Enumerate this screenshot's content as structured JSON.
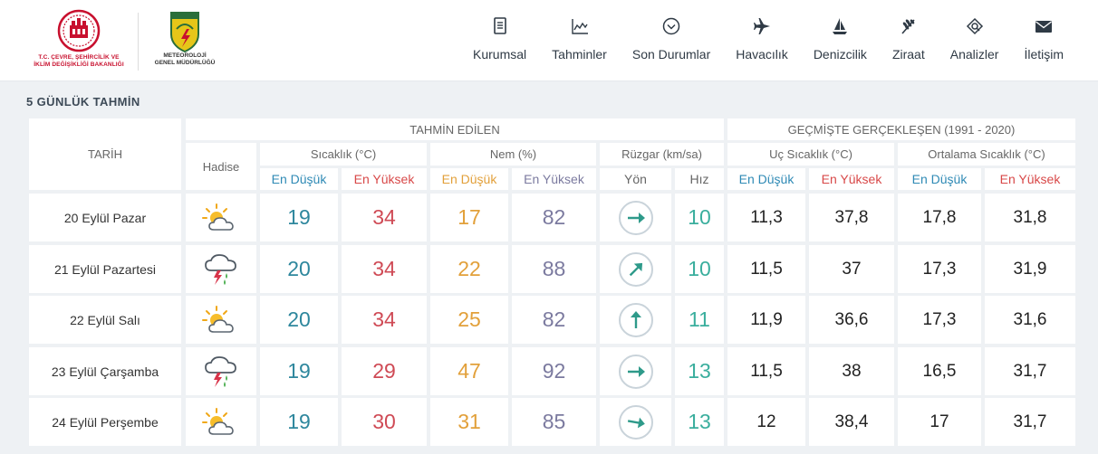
{
  "header": {
    "ministry_line1": "T.C. ÇEVRE, ŞEHİRCİLİK VE",
    "ministry_line2": "İKLİM DEĞİŞİKLİĞİ BAKANLIĞI",
    "mgm_line1": "METEOROLOJİ",
    "mgm_line2": "GENEL MÜDÜRLÜĞÜ",
    "nav": [
      {
        "label": "Kurumsal",
        "icon": "document-icon"
      },
      {
        "label": "Tahminler",
        "icon": "chart-line-icon"
      },
      {
        "label": "Son Durumlar",
        "icon": "chevron-circle-icon"
      },
      {
        "label": "Havacılık",
        "icon": "airplane-icon"
      },
      {
        "label": "Denizcilik",
        "icon": "sailboat-icon"
      },
      {
        "label": "Ziraat",
        "icon": "wheat-icon"
      },
      {
        "label": "Analizler",
        "icon": "analysis-icon"
      },
      {
        "label": "İletişim",
        "icon": "envelope-icon"
      }
    ]
  },
  "forecast": {
    "section_title": "5 GÜNLÜK TAHMİN",
    "col_tarih": "TARİH",
    "col_hadise": "Hadise",
    "group_forecast": "TAHMİN EDİLEN",
    "group_history": "GEÇMİŞTE GERÇEKLEŞEN (1991 - 2020)",
    "sub_sicaklik": "Sıcaklık (°C)",
    "sub_nem": "Nem (%)",
    "sub_ruzgar": "Rüzgar (km/sa)",
    "sub_uc": "Uç Sıcaklık (°C)",
    "sub_ortalama": "Ortalama Sıcaklık (°C)",
    "en_dusuk": "En Düşük",
    "en_yuksek": "En Yüksek",
    "yon": "Yön",
    "hiz": "Hız",
    "rows": [
      {
        "date": "20 Eylül Pazar",
        "event": "partly-cloudy-icon",
        "tmin": "19",
        "tmax": "34",
        "hmin": "17",
        "hmax": "82",
        "wind_dir_deg": 90,
        "wind_speed": "10",
        "ext_min": "11,3",
        "ext_max": "37,8",
        "avg_min": "17,8",
        "avg_max": "31,8"
      },
      {
        "date": "21 Eylül Pazartesi",
        "event": "thunderstorm-icon",
        "tmin": "20",
        "tmax": "34",
        "hmin": "22",
        "hmax": "88",
        "wind_dir_deg": 45,
        "wind_speed": "10",
        "ext_min": "11,5",
        "ext_max": "37",
        "avg_min": "17,3",
        "avg_max": "31,9"
      },
      {
        "date": "22 Eylül Salı",
        "event": "partly-cloudy-icon",
        "tmin": "20",
        "tmax": "34",
        "hmin": "25",
        "hmax": "82",
        "wind_dir_deg": 0,
        "wind_speed": "11",
        "ext_min": "11,9",
        "ext_max": "36,6",
        "avg_min": "17,3",
        "avg_max": "31,6"
      },
      {
        "date": "23 Eylül Çarşamba",
        "event": "thunderstorm-icon",
        "tmin": "19",
        "tmax": "29",
        "hmin": "47",
        "hmax": "92",
        "wind_dir_deg": 90,
        "wind_speed": "13",
        "ext_min": "11,5",
        "ext_max": "38",
        "avg_min": "16,5",
        "avg_max": "31,7"
      },
      {
        "date": "24 Eylül Perşembe",
        "event": "partly-cloudy-icon",
        "tmin": "19",
        "tmax": "30",
        "hmin": "31",
        "hmax": "85",
        "wind_dir_deg": 100,
        "wind_speed": "13",
        "ext_min": "12",
        "ext_max": "38,4",
        "avg_min": "17",
        "avg_max": "31,7"
      }
    ]
  }
}
